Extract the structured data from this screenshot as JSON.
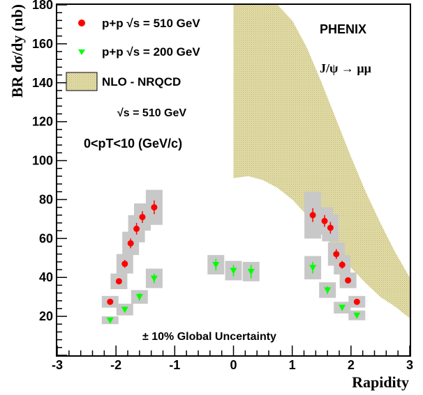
{
  "chart_data": {
    "type": "scatter",
    "title": "",
    "xlabel": "Rapidity",
    "ylabel": "BR dσ/dy (nb)",
    "xlim": [
      -3,
      3
    ],
    "ylim": [
      0,
      180
    ],
    "x_ticks": [
      "-3",
      "-2",
      "-1",
      "0",
      "1",
      "2",
      "3"
    ],
    "y_ticks": [
      "20",
      "40",
      "60",
      "80",
      "100",
      "120",
      "140",
      "160",
      "180"
    ],
    "legend": [
      {
        "label": "p+p √s = 510 GeV",
        "marker": "circle",
        "color": "#ff0000"
      },
      {
        "label": "p+p √s = 200 GeV",
        "marker": "triangle-down",
        "color": "#00ff00"
      },
      {
        "label": "NLO - NRQCD",
        "marker": "band",
        "color": "#d8d29a"
      }
    ],
    "series": [
      {
        "name": "p+p √s = 510 GeV",
        "color": "#ff0000",
        "marker": "circle",
        "points": [
          {
            "x": -2.1,
            "y": 27.5,
            "err": 1.5,
            "sys": 3
          },
          {
            "x": -1.95,
            "y": 38,
            "err": 1.5,
            "sys": 4
          },
          {
            "x": -1.85,
            "y": 47,
            "err": 2,
            "sys": 5
          },
          {
            "x": -1.75,
            "y": 57.5,
            "err": 2.5,
            "sys": 6
          },
          {
            "x": -1.65,
            "y": 65,
            "err": 3,
            "sys": 7
          },
          {
            "x": -1.55,
            "y": 71,
            "err": 3,
            "sys": 7
          },
          {
            "x": -1.35,
            "y": 76,
            "err": 3.5,
            "sys": 9
          },
          {
            "x": 1.35,
            "y": 72,
            "err": 3.5,
            "sys": 12
          },
          {
            "x": 1.55,
            "y": 69,
            "err": 3,
            "sys": 7
          },
          {
            "x": 1.65,
            "y": 65.5,
            "err": 3,
            "sys": 7
          },
          {
            "x": 1.75,
            "y": 52,
            "err": 2.5,
            "sys": 6
          },
          {
            "x": 1.85,
            "y": 46.5,
            "err": 2,
            "sys": 5
          },
          {
            "x": 1.95,
            "y": 38.5,
            "err": 1.5,
            "sys": 4
          },
          {
            "x": 2.1,
            "y": 27.5,
            "err": 1.5,
            "sys": 3
          }
        ]
      },
      {
        "name": "p+p √s = 200 GeV",
        "color": "#00ff00",
        "marker": "triangle-down",
        "points": [
          {
            "x": -2.1,
            "y": 18,
            "err": 1,
            "sys": 2
          },
          {
            "x": -1.85,
            "y": 23.5,
            "err": 1.5,
            "sys": 3
          },
          {
            "x": -1.6,
            "y": 30,
            "err": 2,
            "sys": 3.5
          },
          {
            "x": -1.35,
            "y": 39.5,
            "err": 2.5,
            "sys": 5
          },
          {
            "x": -0.3,
            "y": 46.5,
            "err": 3,
            "sys": 5
          },
          {
            "x": 0.0,
            "y": 43.5,
            "err": 3,
            "sys": 5
          },
          {
            "x": 0.3,
            "y": 43,
            "err": 3.5,
            "sys": 5
          },
          {
            "x": 1.35,
            "y": 45,
            "err": 3,
            "sys": 6
          },
          {
            "x": 1.6,
            "y": 33.5,
            "err": 2,
            "sys": 4
          },
          {
            "x": 1.85,
            "y": 24.5,
            "err": 1.5,
            "sys": 3
          },
          {
            "x": 2.1,
            "y": 20.5,
            "err": 1.5,
            "sys": 2.5
          }
        ]
      }
    ],
    "band": {
      "name": "NLO - NRQCD",
      "color": "#d8d29a",
      "x": [
        0,
        0.25,
        0.5,
        0.75,
        1.0,
        1.25,
        1.5,
        1.75,
        2.0,
        2.25,
        2.5,
        2.75,
        3.0
      ],
      "upper": [
        180,
        180,
        180,
        180,
        172,
        158,
        140,
        121,
        102,
        84,
        68,
        53,
        40
      ],
      "lower": [
        91,
        92,
        90,
        86,
        80,
        72,
        63,
        54,
        45,
        37,
        30,
        25,
        19
      ]
    }
  },
  "annotations": {
    "experiment": "PHENIX",
    "decay": "J/ψ → μμ",
    "energy_note": "√s = 510 GeV",
    "pt_range": "0<pT<10 (GeV/c)",
    "global_uncertainty": "± 10% Global Uncertainty"
  }
}
